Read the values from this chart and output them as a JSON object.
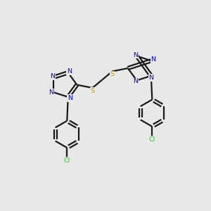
{
  "background_color": "#e8e8e8",
  "bond_color": "#1a1a1a",
  "nitrogen_color": "#0000ee",
  "sulfur_color": "#b8a000",
  "chlorine_color": "#22cc22",
  "line_width": 1.6,
  "figsize": [
    3.0,
    3.0
  ],
  "dpi": 100,
  "xlim": [
    0,
    10
  ],
  "ylim": [
    0,
    10
  ]
}
